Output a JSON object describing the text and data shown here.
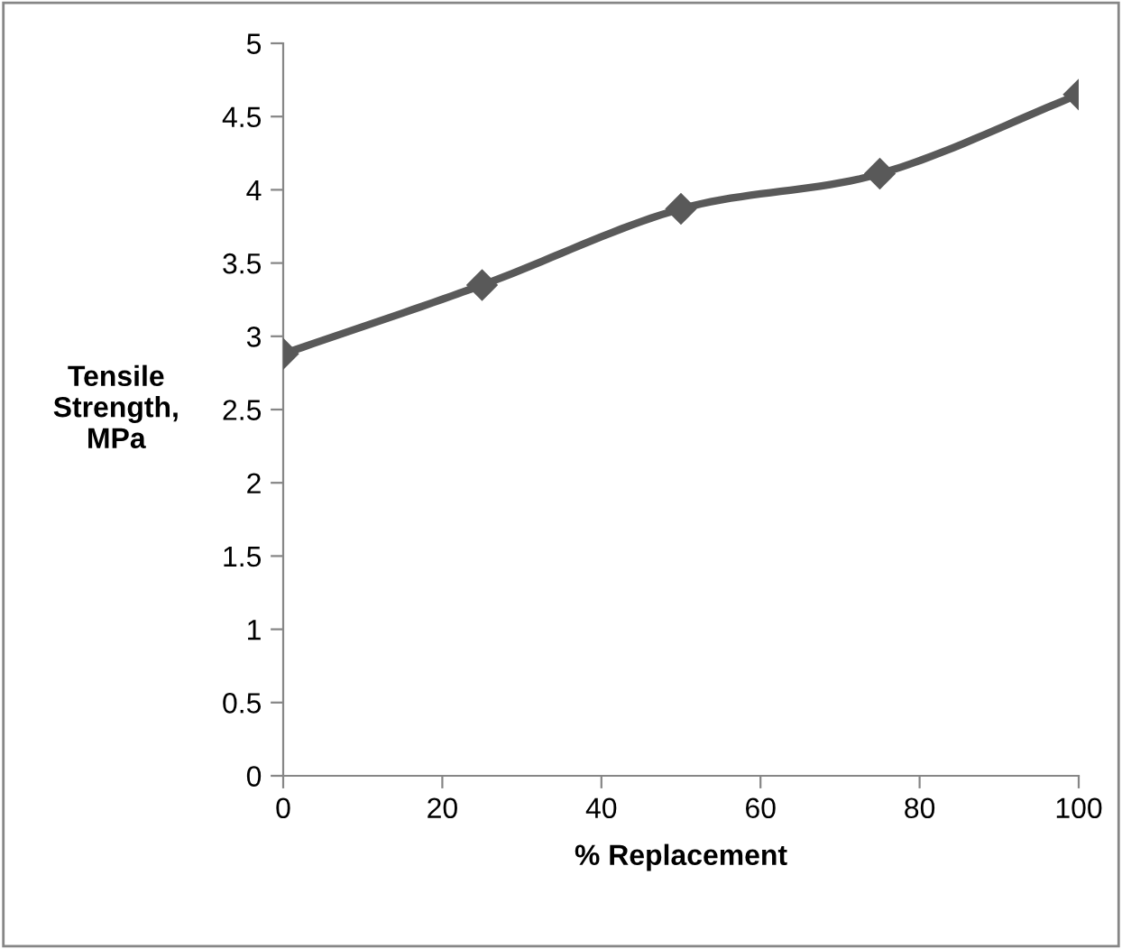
{
  "chart_data": {
    "type": "line",
    "xlabel": "% Replacement",
    "ylabel": "Tensile Strength, MPa",
    "x": [
      0,
      25,
      50,
      75,
      100
    ],
    "series": [
      {
        "color": "#595959",
        "values": [
          2.88,
          3.35,
          3.87,
          4.11,
          4.65
        ]
      }
    ],
    "xlim": [
      0,
      100
    ],
    "xticks": [
      0,
      20,
      40,
      60,
      80,
      100
    ],
    "ylim": [
      0,
      5
    ],
    "yticks": [
      0,
      0.5,
      1,
      1.5,
      2,
      2.5,
      3,
      3.5,
      4,
      4.5,
      5
    ],
    "grid": false,
    "legend": false,
    "marker": "diamond",
    "line_style": "solid"
  }
}
